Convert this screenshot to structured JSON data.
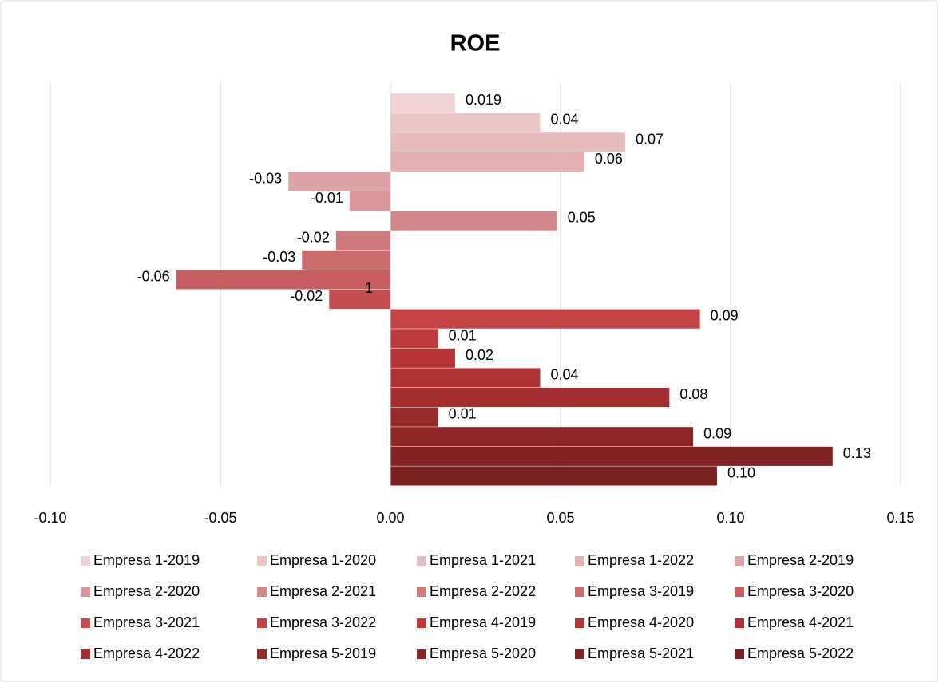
{
  "chart_data": {
    "type": "bar",
    "orientation": "horizontal",
    "title": "ROE",
    "annotations": [
      "1"
    ],
    "xlim": [
      -0.1,
      0.15
    ],
    "xticks": [
      {
        "value": -0.1,
        "label": "-0.10"
      },
      -0.05,
      {
        "value": 0,
        "label": "0.00"
      },
      0.05,
      {
        "value": 0.1,
        "label": "0.10"
      },
      0.15
    ],
    "grid": true,
    "legend": "bottom",
    "series": [
      {
        "name": "Empresa 1-2019",
        "color": "#f0d3d4",
        "values": [
          0.019
        ],
        "value_labels": [
          "0.019"
        ]
      },
      {
        "name": "Empresa 1-2020",
        "color": "#ecc6c7",
        "values": [
          0.044
        ],
        "value_labels": [
          "0.04"
        ]
      },
      {
        "name": "Empresa 1-2021",
        "color": "#e8bbbc",
        "values": [
          0.069
        ],
        "value_labels": [
          "0.07"
        ]
      },
      {
        "name": "Empresa 1-2022",
        "color": "#e4b0b1",
        "values": [
          0.057
        ],
        "value_labels": [
          "0.06"
        ]
      },
      {
        "name": "Empresa 2-2019",
        "color": "#dea2a4",
        "values": [
          -0.03
        ],
        "value_labels": [
          "-0.03"
        ]
      },
      {
        "name": "Empresa 2-2020",
        "color": "#d99597",
        "values": [
          -0.012
        ],
        "value_labels": [
          "-0.01"
        ]
      },
      {
        "name": "Empresa 2-2021",
        "color": "#d4878a",
        "values": [
          0.049
        ],
        "value_labels": [
          "0.05"
        ]
      },
      {
        "name": "Empresa 2-2022",
        "color": "#cf7a7d",
        "values": [
          -0.016
        ],
        "value_labels": [
          "-0.02"
        ]
      },
      {
        "name": "Empresa 3-2019",
        "color": "#cb6b6e",
        "values": [
          -0.026
        ],
        "value_labels": [
          "-0.03"
        ]
      },
      {
        "name": "Empresa 3-2020",
        "color": "#c75d60",
        "values": [
          -0.063
        ],
        "value_labels": [
          "-0.06"
        ]
      },
      {
        "name": "Empresa 3-2021",
        "color": "#c44f52",
        "values": [
          -0.018
        ],
        "value_labels": [
          "-0.02"
        ]
      },
      {
        "name": "Empresa 3-2022",
        "color": "#c34346",
        "values": [
          0.091
        ],
        "value_labels": [
          "0.09"
        ]
      },
      {
        "name": "Empresa 4-2019",
        "color": "#bf3a3d",
        "values": [
          0.014
        ],
        "value_labels": [
          "0.01"
        ]
      },
      {
        "name": "Empresa 4-2020",
        "color": "#b73538",
        "values": [
          0.019
        ],
        "value_labels": [
          "0.02"
        ]
      },
      {
        "name": "Empresa 4-2021",
        "color": "#ae3134",
        "values": [
          0.044
        ],
        "value_labels": [
          "0.04"
        ]
      },
      {
        "name": "Empresa 4-2022",
        "color": "#a42d30",
        "values": [
          0.082
        ],
        "value_labels": [
          "0.08"
        ]
      },
      {
        "name": "Empresa 5-2019",
        "color": "#992a2c",
        "values": [
          0.014
        ],
        "value_labels": [
          "0.01"
        ]
      },
      {
        "name": "Empresa 5-2020",
        "color": "#8e2628",
        "values": [
          0.089
        ],
        "value_labels": [
          "0.09"
        ]
      },
      {
        "name": "Empresa 5-2021",
        "color": "#832224",
        "values": [
          0.13
        ],
        "value_labels": [
          "0.13"
        ]
      },
      {
        "name": "Empresa 5-2022",
        "color": "#7a1e20",
        "values": [
          0.096
        ],
        "value_labels": [
          "0.10"
        ]
      }
    ]
  }
}
